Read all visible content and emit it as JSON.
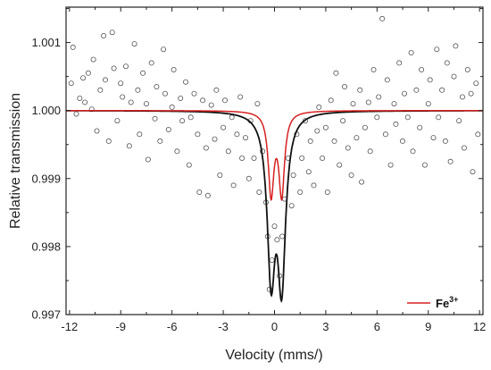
{
  "chart_data": {
    "type": "scatter",
    "xlabel": "Velocity (mms/)",
    "ylabel": "Relative transmission",
    "xlim": [
      -12.2,
      12.2
    ],
    "ylim": [
      0.997,
      1.00152
    ],
    "xticks": [
      -12,
      -9,
      -6,
      -3,
      0,
      3,
      6,
      9,
      12
    ],
    "xtick_labels": [
      "-12",
      "-9",
      "-6",
      "-3",
      "0",
      "3",
      "6",
      "9",
      "12"
    ],
    "yticks": [
      0.997,
      0.998,
      0.999,
      1.0,
      1.001
    ],
    "ytick_labels": [
      "0.997",
      "0.998",
      "0.999",
      "1.000",
      "1.001"
    ],
    "grid": false,
    "legend": {
      "position": "bottom-right",
      "entries": [
        {
          "label_main": "Fe",
          "label_sup": "3+",
          "color": "#d62020"
        }
      ]
    },
    "series": [
      {
        "kind": "markers",
        "marker": "open-circle",
        "color": "#555555",
        "points": [
          [
            -11.9,
            1.0004
          ],
          [
            -11.8,
            1.00093
          ],
          [
            -11.6,
            0.99995
          ],
          [
            -11.4,
            1.00018
          ],
          [
            -11.2,
            1.00048
          ],
          [
            -11.1,
            1.00012
          ],
          [
            -10.9,
            1.00055
          ],
          [
            -10.7,
            1.00002
          ],
          [
            -10.6,
            1.00075
          ],
          [
            -10.4,
            0.9997
          ],
          [
            -10.2,
            1.0003
          ],
          [
            -10.0,
            1.0011
          ],
          [
            -9.9,
            1.00045
          ],
          [
            -9.7,
            0.99955
          ],
          [
            -9.5,
            1.00115
          ],
          [
            -9.4,
            1.00062
          ],
          [
            -9.2,
            0.99985
          ],
          [
            -9.0,
            1.0004
          ],
          [
            -8.9,
            1.0002
          ],
          [
            -8.7,
            1.00065
          ],
          [
            -8.5,
            0.99948
          ],
          [
            -8.4,
            1.00012
          ],
          [
            -8.2,
            1.00098
          ],
          [
            -8.0,
            1.0003
          ],
          [
            -7.9,
            0.99965
          ],
          [
            -7.7,
            1.00055
          ],
          [
            -7.5,
            1.0001
          ],
          [
            -7.4,
            0.99928
          ],
          [
            -7.2,
            1.0007
          ],
          [
            -7.0,
            0.99988
          ],
          [
            -6.9,
            1.00035
          ],
          [
            -6.7,
            0.99955
          ],
          [
            -6.5,
            1.0009
          ],
          [
            -6.4,
            1.00025
          ],
          [
            -6.2,
            0.99972
          ],
          [
            -6.0,
            1.00005
          ],
          [
            -5.9,
            1.0006
          ],
          [
            -5.7,
            0.9994
          ],
          [
            -5.5,
            1.00018
          ],
          [
            -5.4,
            0.99985
          ],
          [
            -5.2,
            1.00042
          ],
          [
            -5.0,
            0.9992
          ],
          [
            -4.9,
            0.9999
          ],
          [
            -4.7,
            1.00025
          ],
          [
            -4.5,
            0.99965
          ],
          [
            -4.4,
            0.9988
          ],
          [
            -4.2,
            1.00015
          ],
          [
            -4.0,
            0.99945
          ],
          [
            -3.9,
            0.99875
          ],
          [
            -3.7,
            1.00008
          ],
          [
            -3.5,
            0.99958
          ],
          [
            -3.4,
            1.0003
          ],
          [
            -3.2,
            0.99905
          ],
          [
            -3.0,
            0.99975
          ],
          [
            -2.9,
            1.00015
          ],
          [
            -2.7,
            0.9994
          ],
          [
            -2.5,
            0.9999
          ],
          [
            -2.4,
            0.9989
          ],
          [
            -2.2,
            0.99965
          ],
          [
            -2.0,
            1.0002
          ],
          [
            -1.9,
            0.9993
          ],
          [
            -1.7,
            0.9996
          ],
          [
            -1.5,
            0.999
          ],
          [
            -1.4,
            0.99985
          ],
          [
            -1.2,
            0.9993
          ],
          [
            -1.0,
            1.0001
          ],
          [
            -0.9,
            0.9988
          ],
          [
            -0.7,
            0.9994
          ],
          [
            -0.5,
            0.99865
          ],
          [
            -0.4,
            0.99815
          ],
          [
            -0.3,
            0.99737
          ],
          [
            -0.15,
            0.9978
          ],
          [
            0.0,
            0.9983
          ],
          [
            0.15,
            0.9981
          ],
          [
            0.3,
            0.99757
          ],
          [
            0.45,
            0.99815
          ],
          [
            0.6,
            0.9987
          ],
          [
            0.8,
            0.9993
          ],
          [
            1.0,
            0.9986
          ],
          [
            1.1,
            0.99905
          ],
          [
            1.3,
            0.99965
          ],
          [
            1.5,
            0.9988
          ],
          [
            1.6,
            0.9993
          ],
          [
            1.8,
            0.99985
          ],
          [
            2.0,
            0.9991
          ],
          [
            2.1,
            0.99955
          ],
          [
            2.3,
            0.9989
          ],
          [
            2.5,
            0.9997
          ],
          [
            2.6,
            1.00005
          ],
          [
            2.8,
            0.9993
          ],
          [
            3.0,
            0.99975
          ],
          [
            3.1,
            0.9988
          ],
          [
            3.3,
            1.00015
          ],
          [
            3.5,
            0.99955
          ],
          [
            3.6,
            1.00055
          ],
          [
            3.8,
            0.9992
          ],
          [
            4.0,
            0.99985
          ],
          [
            4.1,
            1.00035
          ],
          [
            4.3,
            0.99945
          ],
          [
            4.5,
            0.99905
          ],
          [
            4.6,
            1.0001
          ],
          [
            4.8,
            0.9996
          ],
          [
            5.0,
            1.0003
          ],
          [
            5.1,
            0.99895
          ],
          [
            5.3,
            0.99975
          ],
          [
            5.5,
            1.00012
          ],
          [
            5.6,
            0.9994
          ],
          [
            5.8,
            1.0006
          ],
          [
            6.0,
            0.9999
          ],
          [
            6.1,
            1.0002
          ],
          [
            6.3,
            1.00135
          ],
          [
            6.5,
            0.99965
          ],
          [
            6.6,
            1.00045
          ],
          [
            6.8,
            0.9992
          ],
          [
            7.0,
            1.0001
          ],
          [
            7.1,
            0.9998
          ],
          [
            7.3,
            1.0007
          ],
          [
            7.5,
            0.99955
          ],
          [
            7.6,
            1.00025
          ],
          [
            7.8,
            0.9999
          ],
          [
            8.0,
            1.00085
          ],
          [
            8.1,
            0.9994
          ],
          [
            8.3,
            1.0003
          ],
          [
            8.5,
            0.99975
          ],
          [
            8.6,
            1.0006
          ],
          [
            8.8,
            0.9992
          ],
          [
            9.0,
            1.0001
          ],
          [
            9.1,
            1.00045
          ],
          [
            9.3,
            0.9996
          ],
          [
            9.5,
            1.0009
          ],
          [
            9.6,
            0.9999
          ],
          [
            9.8,
            1.0003
          ],
          [
            10.0,
            0.99955
          ],
          [
            10.1,
            1.0007
          ],
          [
            10.3,
            0.99925
          ],
          [
            10.5,
            1.0005
          ],
          [
            10.6,
            1.00095
          ],
          [
            10.8,
            0.99985
          ],
          [
            11.0,
            1.0002
          ],
          [
            11.1,
            0.99945
          ],
          [
            11.3,
            1.0006
          ],
          [
            11.5,
            1.00025
          ],
          [
            11.6,
            0.9991
          ],
          [
            11.8,
            1.0004
          ],
          [
            11.9,
            0.99965
          ]
        ]
      },
      {
        "kind": "line",
        "name": "Fe3+",
        "color": "#d62020",
        "fit": {
          "baseline": 1.0,
          "centers": [
            -0.2,
            0.42
          ],
          "depths": [
            0.0012,
            0.0012
          ],
          "hwhm": 0.2
        }
      },
      {
        "kind": "line",
        "color": "#111111",
        "fit": {
          "baseline": 1.0,
          "centers": [
            -0.2,
            0.42
          ],
          "depths": [
            0.0023,
            0.0024
          ],
          "hwhm": 0.28
        }
      }
    ]
  }
}
